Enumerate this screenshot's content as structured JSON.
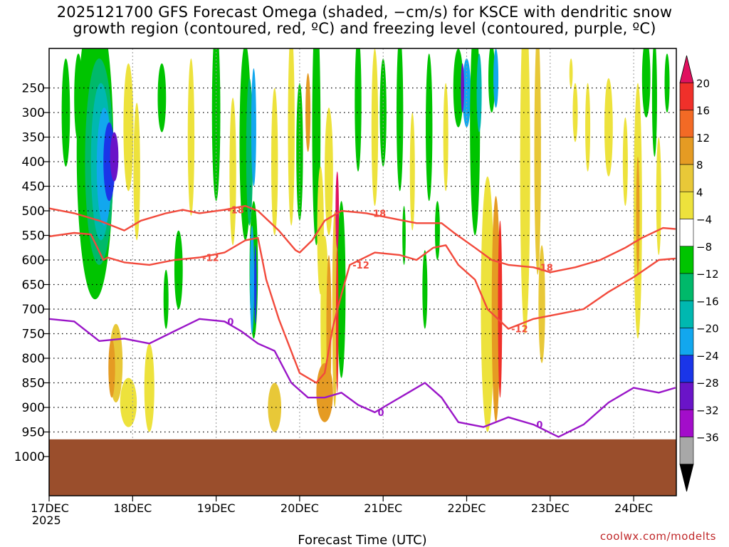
{
  "header": {
    "title_line1": "2025121700 GFS Forecast Omega (shaded, −cm/s) for KSCE with dendritic snow",
    "title_line2": "growth region (contoured, red, ºC) and freezing level (contoured, purple, ºC)"
  },
  "footer": {
    "credit": "coolwx.com/modelts"
  },
  "chart_data": {
    "type": "heatmap",
    "xlabel": "Forecast Time (UTC)",
    "ylabel": "",
    "x_ticks": [
      "17DEC",
      "18DEC",
      "19DEC",
      "20DEC",
      "21DEC",
      "22DEC",
      "23DEC",
      "24DEC"
    ],
    "x_tick_sublabel": "2025",
    "x_range_days": [
      0,
      7.5
    ],
    "y_axis": "pressure (hPa), inverted",
    "y_ticks": [
      250,
      300,
      350,
      400,
      450,
      500,
      550,
      600,
      650,
      700,
      750,
      800,
      850,
      900,
      950,
      1000
    ],
    "y_range": [
      200,
      1050
    ],
    "ground_level_hPa": 965,
    "colorbar": {
      "labels": [
        "20",
        "16",
        "12",
        "8",
        "4",
        "−4",
        "−8",
        "−12",
        "−16",
        "−20",
        "−24",
        "−28",
        "−32",
        "−36"
      ],
      "colors": [
        "#e0115f",
        "#f0302a",
        "#f36a25",
        "#e59b23",
        "#e8c838",
        "#ede23c",
        "#ffffff",
        "#00c400",
        "#00b96a",
        "#00b8b0",
        "#12a7ee",
        "#1a35e8",
        "#6a14c8",
        "#a30dca",
        "#a8a8a8",
        "#000000"
      ]
    },
    "contours": [
      {
        "label": "-18",
        "color": "#f24a3c",
        "points": [
          [
            0.0,
            495
          ],
          [
            0.3,
            505
          ],
          [
            0.6,
            520
          ],
          [
            0.9,
            540
          ],
          [
            1.1,
            520
          ],
          [
            1.4,
            505
          ],
          [
            1.6,
            498
          ],
          [
            1.8,
            505
          ],
          [
            2.1,
            498
          ],
          [
            2.35,
            490
          ],
          [
            2.5,
            500
          ],
          [
            2.75,
            540
          ],
          [
            2.95,
            580
          ],
          [
            3.0,
            585
          ],
          [
            3.15,
            560
          ],
          [
            3.3,
            520
          ],
          [
            3.5,
            500
          ],
          [
            3.8,
            505
          ],
          [
            4.1,
            515
          ],
          [
            4.4,
            525
          ],
          [
            4.7,
            525
          ],
          [
            4.85,
            545
          ],
          [
            5.1,
            575
          ],
          [
            5.3,
            600
          ],
          [
            5.5,
            610
          ],
          [
            5.8,
            615
          ],
          [
            6.0,
            625
          ],
          [
            6.3,
            615
          ],
          [
            6.6,
            600
          ],
          [
            6.9,
            575
          ],
          [
            7.1,
            555
          ],
          [
            7.35,
            535
          ],
          [
            7.5,
            537
          ]
        ]
      },
      {
        "label": "-12",
        "color": "#f24a3c",
        "points": [
          [
            0.0,
            552
          ],
          [
            0.3,
            545
          ],
          [
            0.5,
            548
          ],
          [
            0.65,
            600
          ],
          [
            0.7,
            595
          ],
          [
            0.9,
            605
          ],
          [
            1.2,
            610
          ],
          [
            1.5,
            600
          ],
          [
            1.8,
            595
          ],
          [
            2.1,
            585
          ],
          [
            2.35,
            560
          ],
          [
            2.5,
            555
          ],
          [
            2.6,
            640
          ],
          [
            2.75,
            720
          ],
          [
            3.0,
            830
          ],
          [
            3.2,
            850
          ],
          [
            3.3,
            830
          ],
          [
            3.4,
            735
          ],
          [
            3.5,
            670
          ],
          [
            3.6,
            610
          ],
          [
            3.9,
            585
          ],
          [
            4.2,
            590
          ],
          [
            4.4,
            600
          ],
          [
            4.6,
            575
          ],
          [
            4.75,
            570
          ],
          [
            4.9,
            610
          ],
          [
            5.1,
            640
          ],
          [
            5.25,
            700
          ],
          [
            5.5,
            740
          ],
          [
            5.8,
            720
          ],
          [
            6.1,
            710
          ],
          [
            6.4,
            700
          ],
          [
            6.7,
            665
          ],
          [
            7.0,
            635
          ],
          [
            7.3,
            600
          ],
          [
            7.5,
            597
          ]
        ]
      },
      {
        "label": "0",
        "color": "#9a16c8",
        "points": [
          [
            0.0,
            720
          ],
          [
            0.3,
            725
          ],
          [
            0.6,
            765
          ],
          [
            0.9,
            760
          ],
          [
            1.2,
            770
          ],
          [
            1.5,
            745
          ],
          [
            1.8,
            720
          ],
          [
            2.1,
            725
          ],
          [
            2.3,
            745
          ],
          [
            2.5,
            770
          ],
          [
            2.7,
            785
          ],
          [
            2.9,
            850
          ],
          [
            3.1,
            880
          ],
          [
            3.3,
            880
          ],
          [
            3.5,
            870
          ],
          [
            3.7,
            895
          ],
          [
            3.9,
            910
          ],
          [
            4.1,
            890
          ],
          [
            4.3,
            870
          ],
          [
            4.5,
            850
          ],
          [
            4.7,
            880
          ],
          [
            4.9,
            930
          ],
          [
            5.2,
            940
          ],
          [
            5.5,
            920
          ],
          [
            5.8,
            935
          ],
          [
            6.1,
            960
          ],
          [
            6.4,
            935
          ],
          [
            6.7,
            890
          ],
          [
            7.0,
            860
          ],
          [
            7.3,
            870
          ],
          [
            7.5,
            860
          ]
        ]
      }
    ]
  }
}
